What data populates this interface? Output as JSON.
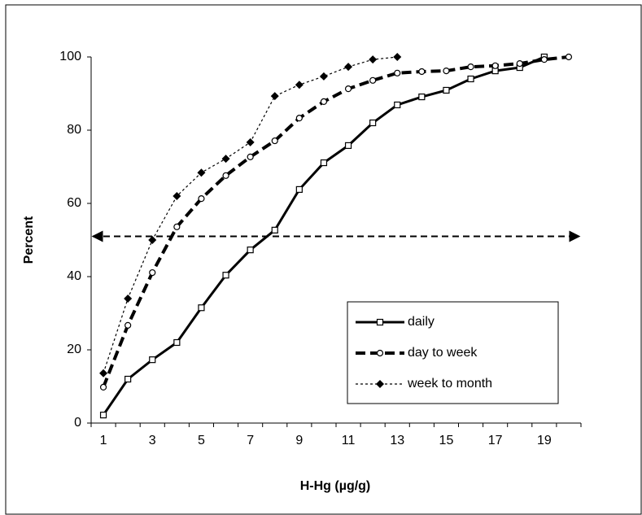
{
  "chart_data": {
    "type": "line",
    "y_label": "Percent",
    "x_label": "H-Hg (µg/g)",
    "categories": [
      "1",
      null,
      "3",
      null,
      "5",
      null,
      "7",
      null,
      "9",
      null,
      "11",
      null,
      "13",
      null,
      "15",
      null,
      "17",
      null,
      "19",
      null
    ],
    "series": [
      {
        "name": "daily",
        "color": "#000000",
        "values": [
          2.2,
          12,
          17.3,
          22,
          31.5,
          40.4,
          47.3,
          52.7,
          63.8,
          71.1,
          75.8,
          82,
          86.9,
          89.1,
          90.9,
          94,
          96.2,
          97.1,
          100,
          null
        ]
      },
      {
        "name": "day to week",
        "color": "#000000",
        "values": [
          9.8,
          26.7,
          41.1,
          53.6,
          61.3,
          67.6,
          72.7,
          77.1,
          83.3,
          87.8,
          91.3,
          93.6,
          95.6,
          96,
          96.2,
          97.3,
          97.6,
          98.2,
          99.3,
          100
        ]
      },
      {
        "name": "week to month",
        "color": "#000000",
        "values": [
          13.6,
          34,
          50,
          62,
          68.4,
          72.2,
          76.7,
          89.3,
          92.4,
          94.7,
          97.3,
          99.3,
          100,
          null,
          null,
          null,
          null,
          null,
          null,
          null
        ]
      }
    ],
    "reference_line": 51,
    "ylim": [
      0,
      100
    ],
    "yticks": [
      0,
      20,
      40,
      60,
      80,
      100
    ],
    "grid": false,
    "legend": "lower right"
  }
}
